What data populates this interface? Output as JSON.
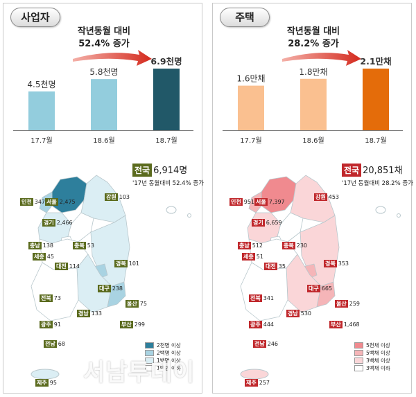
{
  "panels": [
    {
      "pill": "사업자",
      "headline": [
        "작년동월 대비",
        "52.4% 증가"
      ],
      "bar_colors": [
        "#93cddd",
        "#93cddd",
        "#215868"
      ],
      "total_label": "전국",
      "total_value": "6,914명",
      "total_sub": "'17년 동월대비 52.4% 증가",
      "regions": [
        {
          "name": "인천",
          "value": "347"
        },
        {
          "name": "서울",
          "value": "2,475"
        },
        {
          "name": "강원",
          "value": "103"
        },
        {
          "name": "경기",
          "value": "2,466"
        },
        {
          "name": "충남",
          "value": "138"
        },
        {
          "name": "충북",
          "value": "53"
        },
        {
          "name": "세종",
          "value": "45"
        },
        {
          "name": "대전",
          "value": "114"
        },
        {
          "name": "경북",
          "value": "101"
        },
        {
          "name": "대구",
          "value": "238"
        },
        {
          "name": "전북",
          "value": "73"
        },
        {
          "name": "울산",
          "value": "75"
        },
        {
          "name": "경남",
          "value": "133"
        },
        {
          "name": "광주",
          "value": "91"
        },
        {
          "name": "부산",
          "value": "299"
        },
        {
          "name": "전남",
          "value": "68"
        },
        {
          "name": "제주",
          "value": "95"
        }
      ],
      "legend": [
        {
          "label": "2천명 이상",
          "color": "#2e7f9c"
        },
        {
          "label": "2백명 이상",
          "color": "#a9d3e2"
        },
        {
          "label": "1백명 이상",
          "color": "#dbeef4"
        },
        {
          "label": "1백명 이하",
          "color": "#ffffff"
        }
      ]
    },
    {
      "pill": "주택",
      "headline": [
        "작년동월 대비",
        "28.2% 증가"
      ],
      "bar_colors": [
        "#fac090",
        "#fac090",
        "#e46c0a"
      ],
      "total_label": "전국",
      "total_value": "20,851채",
      "total_sub": "'17년 동월대비 28.2% 증가",
      "regions": [
        {
          "name": "인천",
          "value": "951"
        },
        {
          "name": "서울",
          "value": "7,397"
        },
        {
          "name": "강원",
          "value": "453"
        },
        {
          "name": "경기",
          "value": "6,659"
        },
        {
          "name": "충남",
          "value": "512"
        },
        {
          "name": "충북",
          "value": "230"
        },
        {
          "name": "세종",
          "value": "51"
        },
        {
          "name": "대전",
          "value": "35"
        },
        {
          "name": "경북",
          "value": "353"
        },
        {
          "name": "대구",
          "value": "665"
        },
        {
          "name": "전북",
          "value": "341"
        },
        {
          "name": "울산",
          "value": "259"
        },
        {
          "name": "경남",
          "value": "530"
        },
        {
          "name": "광주",
          "value": "444"
        },
        {
          "name": "부산",
          "value": "1,468"
        },
        {
          "name": "전남",
          "value": "246"
        },
        {
          "name": "제주",
          "value": "257"
        }
      ],
      "legend": [
        {
          "label": "5천채 이상",
          "color": "#f08a8f"
        },
        {
          "label": "5백채 이상",
          "color": "#f5b5b8"
        },
        {
          "label": "3백채 이상",
          "color": "#fad6d8"
        },
        {
          "label": "3백채 이하",
          "color": "#ffffff"
        }
      ]
    }
  ],
  "chart_data": [
    {
      "type": "bar",
      "categories": [
        "17.7월",
        "18.6월",
        "18.7월"
      ],
      "values": [
        4.5,
        5.8,
        6.9
      ],
      "value_labels": [
        "4.5천명",
        "5.8천명",
        "6.9천명"
      ],
      "title": "작년동월 대비 52.4% 증가",
      "unit": "천명",
      "ylim": [
        0,
        7.5
      ]
    },
    {
      "type": "bar",
      "categories": [
        "17.7월",
        "18.6월",
        "18.7월"
      ],
      "values": [
        1.6,
        1.8,
        2.1
      ],
      "value_labels": [
        "1.6만채",
        "1.8만채",
        "2.1만채"
      ],
      "title": "작년동월 대비 28.2% 증가",
      "unit": "만채",
      "ylim": [
        0,
        2.3
      ]
    }
  ],
  "watermark": "서남투데이"
}
